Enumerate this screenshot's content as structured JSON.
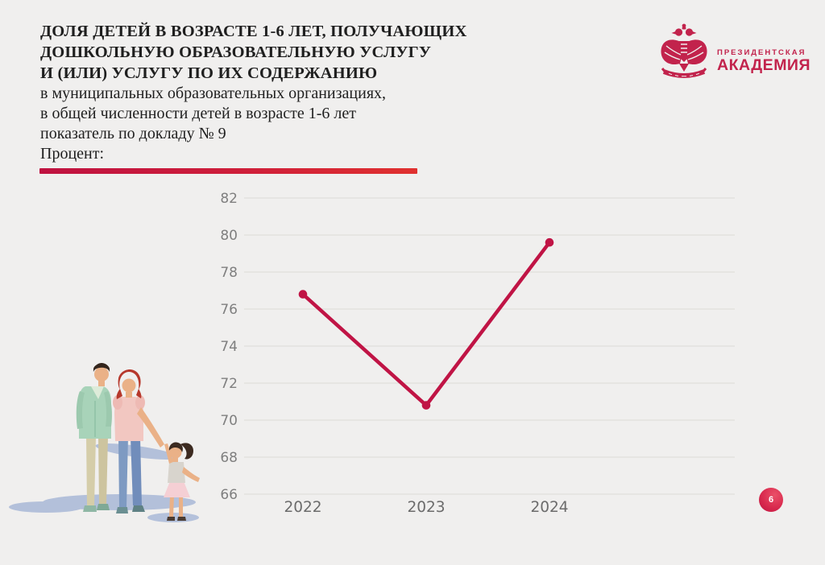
{
  "slide": {
    "background_color": "#f0efee",
    "accent_color": "#c01445",
    "title_bold_lines": [
      "ДОЛЯ ДЕТЕЙ В ВОЗРАСТЕ 1-6 ЛЕТ, ПОЛУЧАЮЩИХ",
      "ДОШКОЛЬНУЮ ОБРАЗОВАТЕЛЬНУЮ УСЛУГУ",
      "И (ИЛИ) УСЛУГУ ПО ИХ СОДЕРЖАНИЮ"
    ],
    "subtitle_lines": [
      "в муниципальных образовательных организациях,",
      "в общей численности детей в возрасте 1-6 лет",
      "показатель по докладу № 9"
    ],
    "unit_label": "Процент:",
    "page_number": "6"
  },
  "logo": {
    "line1": "ПРЕЗИДЕНТСКАЯ",
    "line2": "АКАДЕМИЯ",
    "color": "#c2234c",
    "emblem_icon": "double-headed-eagle-crest"
  },
  "illustration": {
    "name": "family-parents-with-child",
    "shadow_color": "#a9b8d7"
  },
  "chart_data": {
    "type": "line",
    "categories": [
      "2022",
      "2023",
      "2024"
    ],
    "values": [
      76.8,
      70.8,
      79.6
    ],
    "title": "",
    "xlabel": "",
    "ylabel": "Процент",
    "ylim": [
      66,
      82
    ],
    "ytick_step": 2,
    "grid": true,
    "legend": "none",
    "line_color": "#c01445",
    "grid_color": "#e0dfdc",
    "tick_color": "#7f7f7f",
    "xlabel_color": "#6b6b6b"
  }
}
